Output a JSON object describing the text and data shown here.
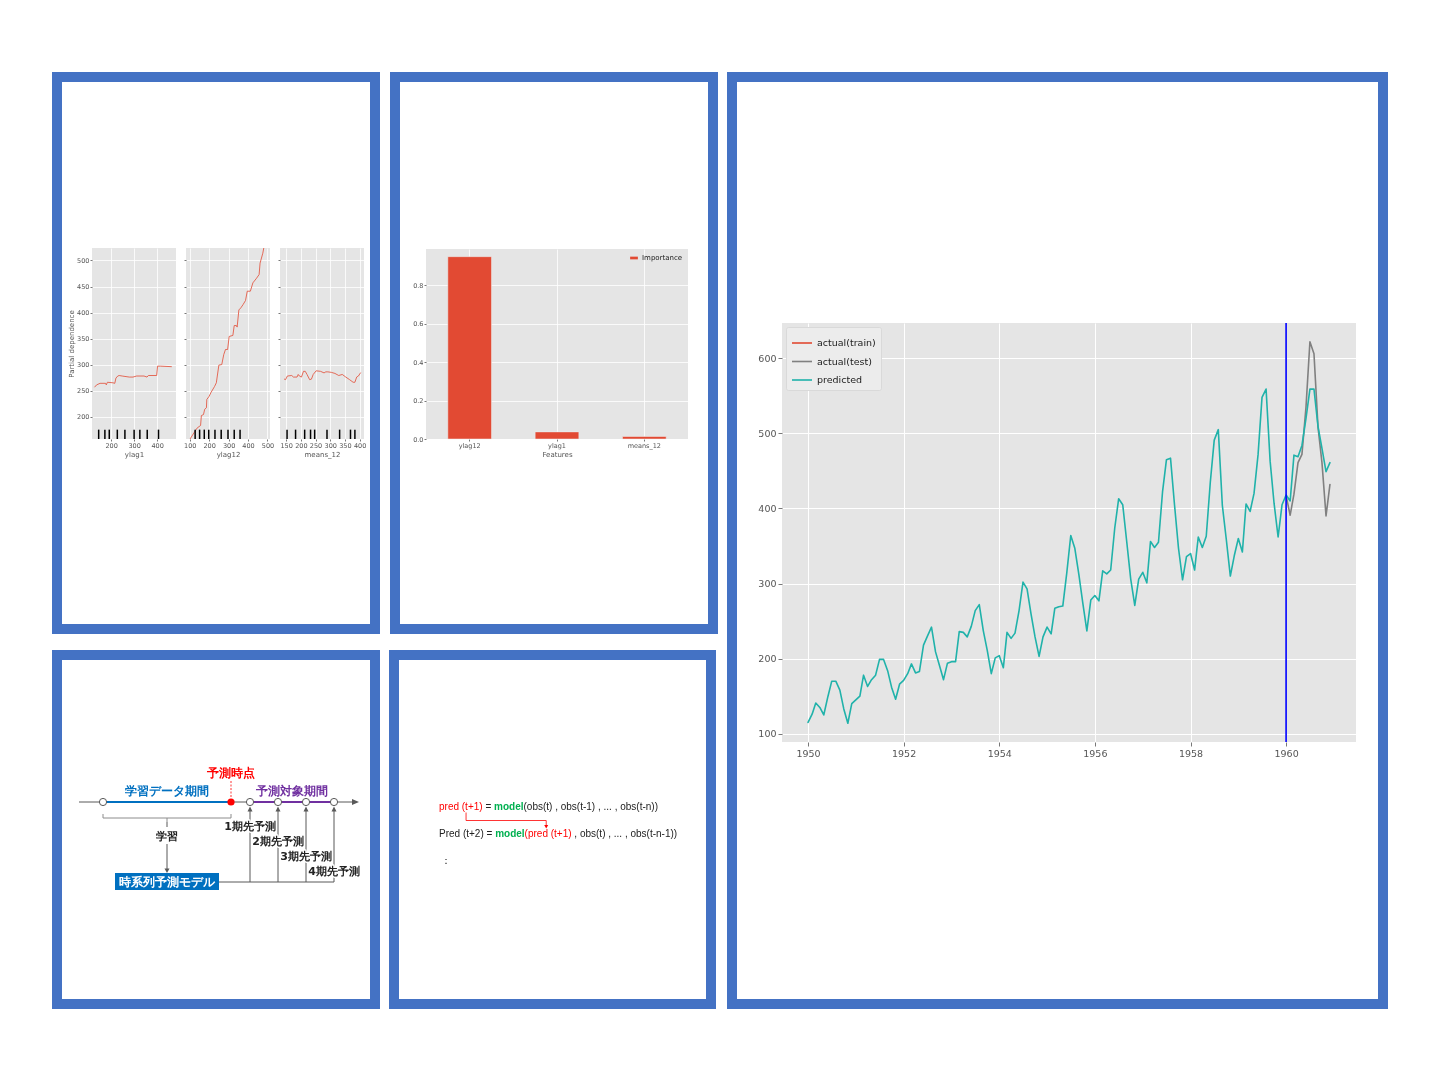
{
  "chart_data": [
    {
      "type": "line",
      "xlabel": "ylag1",
      "ylabel": "Partial dependence",
      "xlim": [
        117,
        482
      ],
      "ylim": [
        157,
        524
      ],
      "xticks": [
        200,
        300,
        400
      ],
      "yticks": [
        200,
        250,
        300,
        350,
        400,
        450,
        500
      ],
      "grid": true,
      "series": [
        {
          "color": "#e24a33",
          "x": [
            129,
            137,
            152,
            176,
            179,
            184,
            208,
            216,
            221,
            229,
            235,
            248,
            279,
            295,
            311,
            343,
            356,
            362,
            398,
            402,
            414,
            462
          ],
          "values": [
            257,
            261,
            264,
            264,
            261,
            266,
            265,
            264,
            274,
            278,
            279,
            278,
            276,
            276,
            278,
            278,
            276,
            279,
            279,
            297,
            297,
            296
          ]
        },
        {
          "type": "bar",
          "color": "#000000",
          "x": [
            146,
            173,
            192,
            227,
            260,
            300,
            325,
            357,
            406
          ],
          "base": [
            157,
            157,
            157,
            157,
            157,
            157,
            157,
            157,
            157
          ],
          "values": [
            18,
            18,
            18,
            18,
            18,
            18,
            18,
            18,
            18
          ]
        }
      ]
    },
    {
      "type": "line",
      "xlabel": "ylag12",
      "xlim": [
        81,
        513
      ],
      "ylim": [
        157,
        524
      ],
      "xticks": [
        100,
        200,
        300,
        400,
        500
      ],
      "yticks": [
        200,
        250,
        300,
        350,
        400,
        450,
        500
      ],
      "grid": true,
      "tick_labels": "x",
      "series": [
        {
          "color": "#e24a33",
          "x": [
            102,
            124,
            138,
            156,
            160,
            171,
            177,
            186,
            188,
            200,
            209,
            228,
            237,
            250,
            265,
            275,
            284,
            295,
            303,
            322,
            329,
            340,
            344,
            353,
            363,
            374,
            387,
            396,
            412,
            425,
            444,
            457,
            462,
            476,
            481
          ],
          "values": [
            157,
            170,
            178,
            183,
            202,
            204,
            214,
            217,
            233,
            239,
            246,
            258,
            265,
            299,
            300,
            319,
            329,
            329,
            354,
            356,
            375,
            375,
            372,
            405,
            409,
            415,
            423,
            441,
            441,
            457,
            466,
            473,
            495,
            514,
            524
          ]
        },
        {
          "type": "bar",
          "color": "#000000",
          "x": [
            128,
            151,
            175,
            198,
            230,
            262,
            297,
            329,
            359
          ],
          "base": [
            157,
            157,
            157,
            157,
            157,
            157,
            157,
            157,
            157
          ],
          "values": [
            18,
            18,
            18,
            18,
            18,
            18,
            18,
            18,
            18
          ]
        }
      ]
    },
    {
      "type": "line",
      "xlabel": "means_12",
      "xlim": [
        129,
        415
      ],
      "ylim": [
        157,
        524
      ],
      "xticks": [
        150,
        200,
        250,
        300,
        350,
        400
      ],
      "yticks": [
        200,
        250,
        300,
        350,
        400,
        450,
        500
      ],
      "grid": true,
      "tick_labels": "x",
      "series": [
        {
          "color": "#e24a33",
          "x": [
            144,
            148,
            154,
            169,
            175,
            187,
            191,
            195,
            202,
            209,
            215,
            221,
            230,
            236,
            242,
            252,
            267,
            279,
            285,
            292,
            304,
            316,
            329,
            341,
            353,
            366,
            378,
            384,
            390,
            396,
            403
          ],
          "values": [
            272,
            271,
            278,
            279,
            276,
            276,
            281,
            278,
            276,
            287,
            287,
            281,
            271,
            272,
            281,
            288,
            287,
            284,
            286,
            286,
            285,
            283,
            279,
            281,
            276,
            271,
            266,
            266,
            276,
            278,
            284
          ]
        },
        {
          "type": "bar",
          "color": "#000000",
          "x": [
            153,
            182,
            213,
            233,
            247,
            289,
            332,
            369,
            384
          ],
          "base": [
            157,
            157,
            157,
            157,
            157,
            157,
            157,
            157,
            157
          ],
          "values": [
            18,
            18,
            18,
            18,
            18,
            18,
            18,
            18,
            18
          ]
        }
      ]
    },
    {
      "type": "bar",
      "categories": [
        "ylag12",
        "ylag1",
        "means_12"
      ],
      "xlabel": "Features",
      "ylim": [
        0,
        0.99
      ],
      "yticks": [
        {
          "value": 0,
          "label": "0.0"
        },
        0.2,
        0.4,
        0.6,
        0.8
      ],
      "grid": true,
      "legend": "top right",
      "series": [
        {
          "name": "Importance",
          "color": "#e24a33",
          "values": [
            0.95,
            0.037,
            0.013
          ]
        }
      ]
    },
    {
      "type": "line",
      "xlim": [
        "1949-06-16",
        "1961-06-18"
      ],
      "xticks": [
        "1950",
        "1952",
        "1954",
        "1956",
        "1958",
        "1960"
      ],
      "ylim": [
        89,
        647
      ],
      "yticks": [
        100,
        200,
        300,
        400,
        500,
        600
      ],
      "grid": true,
      "legend": "top left",
      "x": [
        "1950-01",
        "1950-02",
        "1950-03",
        "1950-04",
        "1950-05",
        "1950-06",
        "1950-07",
        "1950-08",
        "1950-09",
        "1950-10",
        "1950-11",
        "1950-12",
        "1951-01",
        "1951-02",
        "1951-03",
        "1951-04",
        "1951-05",
        "1951-06",
        "1951-07",
        "1951-08",
        "1951-09",
        "1951-10",
        "1951-11",
        "1951-12",
        "1952-01",
        "1952-02",
        "1952-03",
        "1952-04",
        "1952-05",
        "1952-06",
        "1952-07",
        "1952-08",
        "1952-09",
        "1952-10",
        "1952-11",
        "1952-12",
        "1953-01",
        "1953-02",
        "1953-03",
        "1953-04",
        "1953-05",
        "1953-06",
        "1953-07",
        "1953-08",
        "1953-09",
        "1953-10",
        "1953-11",
        "1953-12",
        "1954-01",
        "1954-02",
        "1954-03",
        "1954-04",
        "1954-05",
        "1954-06",
        "1954-07",
        "1954-08",
        "1954-09",
        "1954-10",
        "1954-11",
        "1954-12",
        "1955-01",
        "1955-02",
        "1955-03",
        "1955-04",
        "1955-05",
        "1955-06",
        "1955-07",
        "1955-08",
        "1955-09",
        "1955-10",
        "1955-11",
        "1955-12",
        "1956-01",
        "1956-02",
        "1956-03",
        "1956-04",
        "1956-05",
        "1956-06",
        "1956-07",
        "1956-08",
        "1956-09",
        "1956-10",
        "1956-11",
        "1956-12",
        "1957-01",
        "1957-02",
        "1957-03",
        "1957-04",
        "1957-05",
        "1957-06",
        "1957-07",
        "1957-08",
        "1957-09",
        "1957-10",
        "1957-11",
        "1957-12",
        "1958-01",
        "1958-02",
        "1958-03",
        "1958-04",
        "1958-05",
        "1958-06",
        "1958-07",
        "1958-08",
        "1958-09",
        "1958-10",
        "1958-11",
        "1958-12",
        "1959-01",
        "1959-02",
        "1959-03",
        "1959-04",
        "1959-05",
        "1959-06",
        "1959-07",
        "1959-08",
        "1959-09",
        "1959-10",
        "1959-11",
        "1959-12",
        "1960-01",
        "1960-02",
        "1960-03",
        "1960-04",
        "1960-05",
        "1960-06",
        "1960-07",
        "1960-08",
        "1960-09",
        "1960-10",
        "1960-11",
        "1960-12"
      ],
      "series": [
        {
          "name": "actual(train)",
          "color": "#e24a33",
          "values": [
            null,
            null,
            null,
            null,
            null,
            null,
            null,
            null,
            null,
            null,
            null,
            null,
            null,
            null,
            null,
            null,
            null,
            null,
            null,
            null,
            null,
            null,
            null,
            null,
            null,
            null,
            null,
            null,
            null,
            null,
            null,
            null,
            null,
            null,
            null,
            null,
            null,
            null,
            null,
            null,
            null,
            null,
            null,
            null,
            null,
            null,
            null,
            null,
            null,
            null,
            null,
            null,
            null,
            null,
            null,
            null,
            null,
            null,
            null,
            null,
            null,
            null,
            null,
            null,
            null,
            null,
            null,
            null,
            null,
            null,
            null,
            null,
            null,
            null,
            null,
            null,
            null,
            null,
            null,
            null,
            null,
            null,
            null,
            null,
            null,
            null,
            null,
            null,
            null,
            null,
            null,
            null,
            null,
            null,
            null,
            null,
            null,
            null,
            null,
            null,
            null,
            null,
            null,
            null,
            null,
            null,
            null,
            null,
            null,
            null,
            null,
            null,
            null,
            null,
            null,
            null,
            null,
            null,
            null,
            null,
            null,
            null,
            null,
            null,
            null,
            null,
            null,
            null,
            null,
            null,
            null,
            null
          ]
        },
        {
          "name": "actual(test)",
          "color": "#808080",
          "x": [
            "1960-01",
            "1960-02",
            "1960-03",
            "1960-04",
            "1960-05",
            "1960-06",
            "1960-07",
            "1960-08",
            "1960-09",
            "1960-10",
            "1960-11",
            "1960-12"
          ],
          "values": [
            417,
            391,
            419,
            461,
            472,
            535,
            622,
            606,
            508,
            461,
            390,
            432
          ]
        },
        {
          "name": "predicted",
          "color": "#20b2aa",
          "values": [
            115,
            126,
            141,
            135,
            125,
            149,
            170,
            170,
            158,
            133,
            114,
            140,
            145,
            150,
            178,
            163,
            172,
            178,
            199,
            199,
            184,
            162,
            146,
            166,
            171,
            180,
            193,
            181,
            183,
            218,
            230,
            242,
            209,
            191,
            172,
            194,
            196,
            196,
            236,
            235,
            229,
            243,
            264,
            272,
            237,
            211,
            180,
            201,
            204,
            188,
            235,
            227,
            234,
            264,
            302,
            293,
            259,
            229,
            203,
            229,
            242,
            233,
            267,
            269,
            270,
            315,
            364,
            347,
            312,
            274,
            237,
            278,
            284,
            277,
            317,
            313,
            318,
            374,
            413,
            405,
            355,
            306,
            271,
            306,
            315,
            301,
            356,
            348,
            355,
            422,
            465,
            467,
            404,
            347,
            305,
            336,
            340,
            318,
            362,
            348,
            363,
            435,
            491,
            505,
            404,
            359,
            310,
            337,
            360,
            342,
            406,
            396,
            420,
            472,
            548,
            559,
            463,
            407,
            362,
            405,
            418,
            410,
            471,
            469,
            484,
            520,
            559,
            559,
            509,
            480,
            449,
            461
          ]
        }
      ],
      "ref_lines": [
        {
          "axis": "x",
          "value": "1960-01",
          "color": "#0000ff"
        }
      ]
    },
    {
      "type": "other",
      "annotations": [
        "予測時点",
        "学習データ期間",
        "予測対象期間",
        "学習",
        "1期先予測",
        "2期先予測",
        "3期先予測",
        "4期先予測",
        "時系列予測モデル"
      ]
    },
    {
      "type": "other",
      "annotations": [
        "pred (t+1)",
        "=",
        "model",
        "(obs(t) , obs(t-1) , ... , obs(t-n))",
        "Pred (t+2)",
        "=",
        "model",
        "(pred (t+1)",
        ", obs(t) , ... , obs(t-n-1))",
        "："
      ]
    }
  ]
}
